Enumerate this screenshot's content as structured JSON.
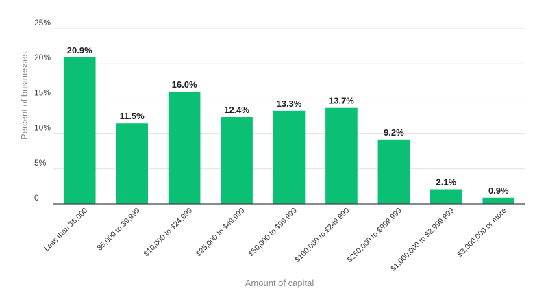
{
  "chart_data": {
    "type": "bar",
    "categories": [
      "Less than $5,000",
      "$5,000 to $9,999",
      "$10,000 to $24,999",
      "$25,000 to $49,999",
      "$50,000 to $99,999",
      "$100,000 to $249,999",
      "$250,000 to $999,999",
      "$1,000,000 to $2,999,999",
      "$3,000,000 or more"
    ],
    "values": [
      20.9,
      11.5,
      16.0,
      12.4,
      13.3,
      13.7,
      9.2,
      2.1,
      0.9
    ],
    "value_labels": [
      "20.9%",
      "11.5%",
      "16.0%",
      "12.4%",
      "13.3%",
      "13.7%",
      "9.2%",
      "2.1%",
      "0.9%"
    ],
    "y_ticks": [
      0,
      5,
      10,
      15,
      20,
      25
    ],
    "y_tick_labels": [
      "0",
      "5%",
      "10%",
      "15%",
      "20%",
      "25%"
    ],
    "ylim": [
      0,
      25
    ],
    "xlabel": "Amount of capital",
    "ylabel": "Percent of businesses",
    "bar_color": "#0bbf74",
    "grid": true,
    "legend": "none"
  }
}
